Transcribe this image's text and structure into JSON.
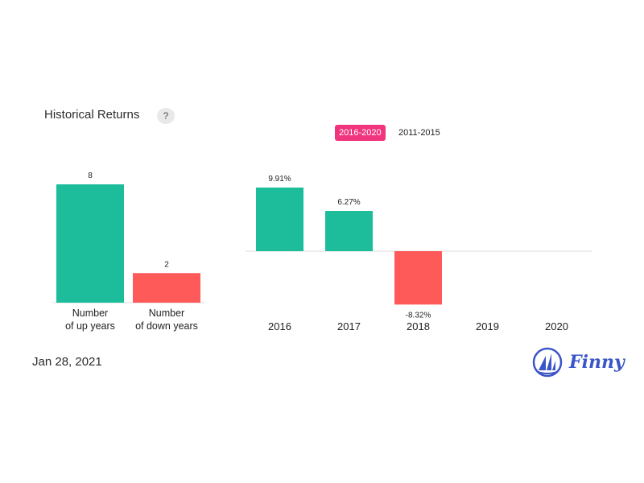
{
  "header": {
    "title": "Historical Returns",
    "help_label": "?"
  },
  "tabs": [
    {
      "label": "2016-2020",
      "active": true
    },
    {
      "label": "2011-2015",
      "active": false
    }
  ],
  "footer": {
    "date": "Jan 28, 2021",
    "logo_text": "Finny"
  },
  "colors": {
    "up": "#1dbd9c",
    "down": "#ff5a5a",
    "active_tab": "#f0357e",
    "logo": "#3a55c8"
  },
  "chart_data": [
    {
      "type": "bar",
      "categories": [
        [
          "Number",
          "of up years"
        ],
        [
          "Number",
          "of down years"
        ]
      ],
      "values": [
        8,
        2
      ],
      "value_labels": [
        "8",
        "2"
      ],
      "ylim": [
        0,
        8
      ]
    },
    {
      "type": "bar",
      "categories": [
        "2016",
        "2017",
        "2018",
        "2019",
        "2020"
      ],
      "values": [
        9.91,
        6.27,
        -8.32,
        null,
        null
      ],
      "value_labels": [
        "9.91%",
        "6.27%",
        "-8.32%",
        "",
        ""
      ],
      "unit": "%"
    }
  ]
}
